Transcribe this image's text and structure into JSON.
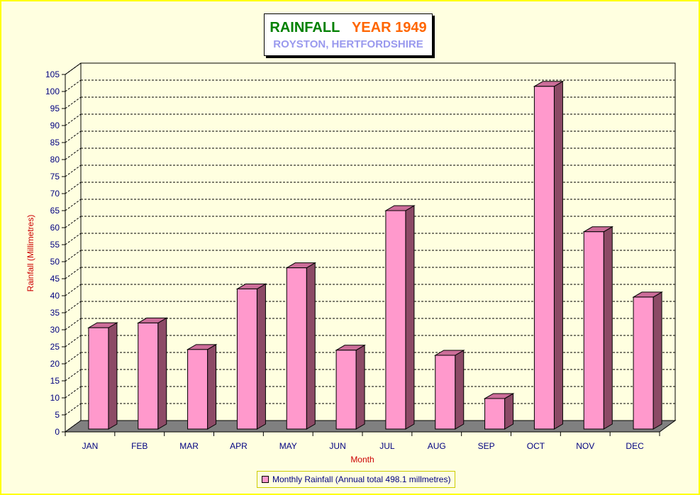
{
  "title": {
    "part1": "RAINFALL",
    "part2": "YEAR 1949",
    "subtitle": "ROYSTON, HERTFORDSHIRE"
  },
  "colors": {
    "bar_front": "#ff99cc",
    "bar_side": "#8c4a66",
    "bar_top": "#cc6d99",
    "floor": "#808080",
    "title_green": "#008000",
    "title_orange": "#ff6600",
    "subtitle": "#9999ee",
    "tick_label": "#000080",
    "axis_title": "#cc0000"
  },
  "chart_data": {
    "type": "bar",
    "title": "RAINFALL YEAR 1949",
    "subtitle": "ROYSTON, HERTFORDSHIRE",
    "xlabel": "Month",
    "ylabel": "Rainfall  (Millimetres)",
    "categories": [
      "JAN",
      "FEB",
      "MAR",
      "APR",
      "MAY",
      "JUN",
      "JUL",
      "AUG",
      "SEP",
      "OCT",
      "NOV",
      "DEC"
    ],
    "series": [
      {
        "name": "Monthly Rainfall (Annual total 498.1 millmetres)",
        "values": [
          30.6,
          32.0,
          24.2,
          42.0,
          48.2,
          24.0,
          65.0,
          22.5,
          9.8,
          101.5,
          58.8,
          39.6
        ]
      }
    ],
    "ylim": [
      0,
      105
    ],
    "yticks": [
      0,
      5,
      10,
      15,
      20,
      25,
      30,
      35,
      40,
      45,
      50,
      55,
      60,
      65,
      70,
      75,
      80,
      85,
      90,
      95,
      100,
      105
    ],
    "grid": "horizontal-dashed",
    "legend_position": "bottom-center",
    "style": "3d"
  }
}
